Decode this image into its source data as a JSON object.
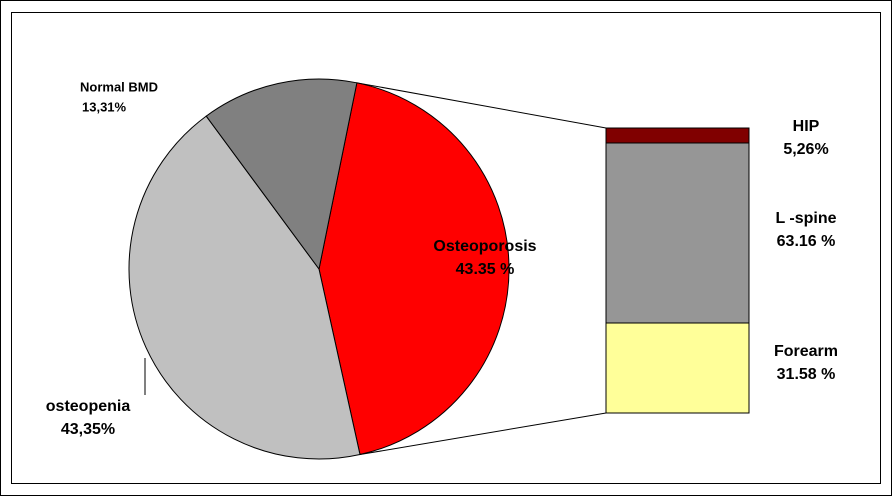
{
  "chart_data": {
    "type": "pie",
    "categories": [
      "Osteoporosis",
      "osteopenia",
      "Normal BMD"
    ],
    "values": [
      43.35,
      43.35,
      13.31
    ],
    "value_labels": [
      "43.35 %",
      "43,35%",
      "13,31%"
    ],
    "colors": [
      "#ff0000",
      "#c0c0c0",
      "#808080"
    ],
    "breakdown": {
      "type": "bar",
      "categories": [
        "HIP",
        "L -spine",
        "Forearm"
      ],
      "values": [
        5.26,
        63.16,
        31.58
      ],
      "value_labels": [
        "5,26%",
        "63.16 %",
        "31.58 %"
      ],
      "colors": [
        "#800000",
        "#969696",
        "#ffff99"
      ]
    }
  }
}
